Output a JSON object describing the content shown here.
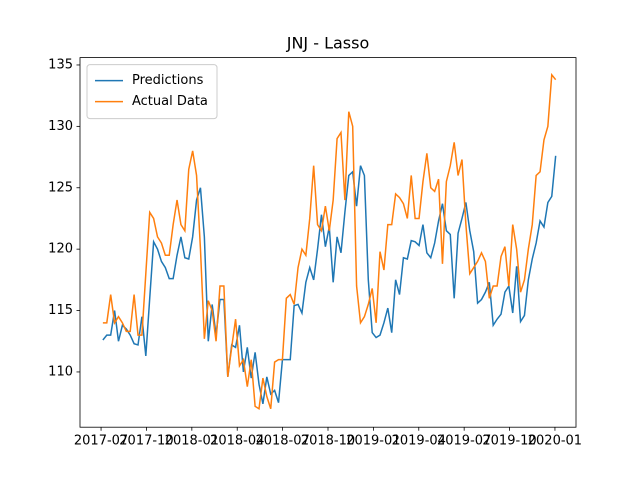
{
  "chart_data": {
    "type": "line",
    "title": "JNJ - Lasso",
    "x": [
      2017.51,
      2017.5315,
      2017.553,
      2017.5745,
      2017.596,
      2017.6175,
      2017.639,
      2017.6605,
      2017.682,
      2017.7035,
      2017.725,
      2017.7465,
      2017.768,
      2017.7895,
      2017.811,
      2017.8325,
      2017.854,
      2017.8755,
      2017.897,
      2017.9185,
      2017.94,
      2017.9615,
      2017.983,
      2018.0045,
      2018.026,
      2018.0475,
      2018.069,
      2018.0905,
      2018.112,
      2018.1335,
      2018.155,
      2018.1765,
      2018.198,
      2018.2195,
      2018.241,
      2018.2625,
      2018.284,
      2018.3055,
      2018.327,
      2018.3485,
      2018.37,
      2018.3915,
      2018.413,
      2018.4345,
      2018.456,
      2018.4775,
      2018.499,
      2018.5205,
      2018.542,
      2018.5635,
      2018.585,
      2018.6065,
      2018.628,
      2018.6495,
      2018.671,
      2018.6925,
      2018.714,
      2018.7355,
      2018.757,
      2018.7785,
      2018.8,
      2018.8215,
      2018.843,
      2018.8645,
      2018.886,
      2018.9075,
      2018.929,
      2018.9505,
      2018.972,
      2018.9935,
      2019.015,
      2019.0365,
      2019.058,
      2019.0795,
      2019.101,
      2019.1225,
      2019.144,
      2019.1655,
      2019.187,
      2019.2085,
      2019.23,
      2019.2515,
      2019.273,
      2019.2945,
      2019.316,
      2019.3375,
      2019.359,
      2019.3805,
      2019.402,
      2019.4235,
      2019.445,
      2019.4665,
      2019.488,
      2019.5095,
      2019.531,
      2019.5525,
      2019.574,
      2019.5955,
      2019.617,
      2019.6385,
      2019.66,
      2019.6815,
      2019.703,
      2019.7245,
      2019.746,
      2019.7675,
      2019.789,
      2019.8105,
      2019.832,
      2019.8535,
      2019.875,
      2019.8965,
      2019.918,
      2019.9395,
      2019.961,
      2019.9825,
      2020.004
    ],
    "series": [
      {
        "name": "Predictions",
        "color": "#1f77b4",
        "values": [
          112.6,
          113,
          113,
          115,
          112.5,
          113.8,
          113.5,
          113,
          112.3,
          112.2,
          114.5,
          111.3,
          116,
          120.6,
          120,
          119,
          118.5,
          117.6,
          117.6,
          119.5,
          121,
          119.3,
          119.2,
          121,
          124,
          125,
          121,
          112.5,
          115.5,
          113,
          115.9,
          115.9,
          109.6,
          112.2,
          112,
          113.8,
          110,
          112,
          109.5,
          111.6,
          109,
          107.4,
          109.6,
          108.2,
          108.5,
          107.5,
          111,
          111,
          111,
          115.4,
          115.5,
          114.8,
          117.3,
          118.5,
          117.5,
          120,
          122.8,
          120.2,
          121.8,
          117.3,
          121,
          119.7,
          123,
          126,
          126.3,
          123.5,
          126.8,
          126,
          117.5,
          113.2,
          112.8,
          113,
          114,
          115.2,
          113.2,
          117.5,
          116.3,
          119.3,
          119.2,
          120.7,
          120.6,
          120.3,
          122,
          119.7,
          119.3,
          120.5,
          122.3,
          123.7,
          121.5,
          121.2,
          116,
          121.3,
          122.5,
          123.8,
          121.5,
          119.8,
          115.6,
          115.9,
          116.5,
          117.3,
          113.8,
          114.3,
          114.7,
          116.5,
          117,
          114.8,
          118.6,
          114.1,
          114.6,
          117.5,
          119.2,
          120.5,
          122.3,
          121.8,
          123.8,
          124.3,
          127.6
        ]
      },
      {
        "name": "Actual Data",
        "color": "#ff7f0e",
        "values": [
          114,
          114,
          116.3,
          114,
          114.5,
          114,
          113.3,
          113.3,
          116.3,
          113,
          113,
          118,
          123,
          122.5,
          121,
          120.5,
          119.5,
          119.5,
          122,
          124,
          122,
          121.5,
          126.5,
          128,
          126,
          120,
          112.7,
          115.8,
          115,
          112.5,
          117,
          117,
          109.6,
          112,
          114.3,
          110.5,
          111,
          108.8,
          111,
          107.2,
          107,
          109.5,
          108,
          107,
          110.8,
          111,
          111,
          116,
          116.3,
          115.5,
          118.5,
          120,
          119.5,
          122.5,
          126.8,
          122,
          121.5,
          123.5,
          121.5,
          124,
          129,
          129.5,
          124,
          131.2,
          130,
          117,
          114,
          114.5,
          115.5,
          116.8,
          114,
          119.8,
          118.3,
          122,
          122,
          124.5,
          124.2,
          123.7,
          122.5,
          126,
          122.5,
          122.5,
          125.5,
          127.8,
          125,
          124.7,
          125.7,
          118.8,
          125.5,
          126.8,
          128.7,
          126,
          127.3,
          122,
          118,
          118.5,
          119,
          119.7,
          119,
          116,
          117,
          117,
          119.4,
          120.2,
          117,
          122,
          120,
          116.5,
          117.5,
          120,
          122,
          126,
          126.3,
          128.9,
          130,
          134.2,
          133.8
        ]
      }
    ],
    "xlim": [
      2017.384,
      2020.116
    ],
    "xticks": [
      {
        "value": 2017.5,
        "label": "2017-07"
      },
      {
        "value": 2017.75,
        "label": "2017-10"
      },
      {
        "value": 2018.0,
        "label": "2018-01"
      },
      {
        "value": 2018.25,
        "label": "2018-04"
      },
      {
        "value": 2018.5,
        "label": "2018-07"
      },
      {
        "value": 2018.75,
        "label": "2018-10"
      },
      {
        "value": 2019.0,
        "label": "2019-01"
      },
      {
        "value": 2019.25,
        "label": "2019-04"
      },
      {
        "value": 2019.5,
        "label": "2019-07"
      },
      {
        "value": 2019.75,
        "label": "2019-10"
      },
      {
        "value": 2020.0,
        "label": "2020-01"
      }
    ],
    "ylim": [
      105.5,
      135.6
    ],
    "yticks": [
      110,
      115,
      120,
      125,
      130,
      135
    ],
    "grid": false,
    "legend": "upper-left"
  }
}
